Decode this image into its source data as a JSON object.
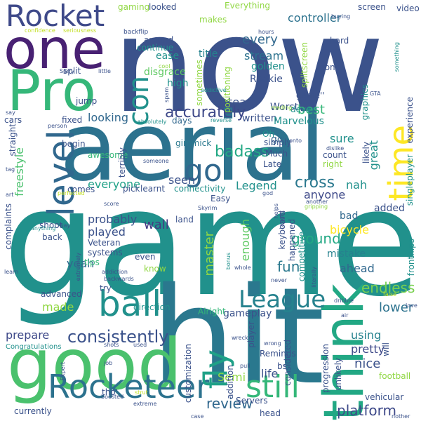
{
  "background": "#ffffff",
  "palette": {
    "dark_purple": "#440154",
    "indigo": "#3b528b",
    "blue": "#31688e",
    "teal": "#21918c",
    "green": "#35b779",
    "lime": "#90d743",
    "yellow": "#fde725"
  },
  "words": [
    {
      "text": "game",
      "color": "#21918c"
    },
    {
      "text": "hit",
      "color": "#2a788e"
    },
    {
      "text": "now",
      "color": "#3b528b"
    },
    {
      "text": "aerial",
      "color": "#2c728e"
    },
    {
      "text": "good",
      "color": "#4ac16d"
    },
    {
      "text": "one",
      "color": "#482173"
    },
    {
      "text": "Pro",
      "color": "#35b779"
    },
    {
      "text": "Rocket",
      "color": "#3e4989"
    },
    {
      "text": "think",
      "color": "#22a884"
    },
    {
      "text": "level",
      "color": "#31688e"
    },
    {
      "text": "time",
      "color": "#fde725"
    },
    {
      "text": "ball",
      "color": "#21918c"
    },
    {
      "text": "Rocketeer",
      "color": "#2c728e"
    },
    {
      "text": "go",
      "color": "#31688e"
    },
    {
      "text": "League",
      "color": "#26828e"
    },
    {
      "text": "fly",
      "color": "#1fa187"
    },
    {
      "text": "still",
      "color": "#35b779"
    },
    {
      "text": "con",
      "color": "#21918c"
    },
    {
      "text": "consistently",
      "color": "#3b528b"
    },
    {
      "text": "accurately",
      "color": "#3e4989"
    },
    {
      "text": "review",
      "color": "#31688e"
    },
    {
      "text": "platform",
      "color": "#3e4989"
    },
    {
      "text": "badass",
      "color": "#22a884"
    },
    {
      "text": "cross",
      "color": "#2a788e"
    },
    {
      "text": "master",
      "color": "#90d743"
    },
    {
      "text": "endless",
      "color": "#7ad151"
    },
    {
      "text": "lower",
      "color": "#2c728e"
    },
    {
      "text": "nice",
      "color": "#3b528b"
    },
    {
      "text": "Legend",
      "color": "#21918c"
    },
    {
      "text": "wall",
      "color": "#443983"
    },
    {
      "text": "played",
      "color": "#3b528b"
    },
    {
      "text": "anyone",
      "color": "#3e4989"
    },
    {
      "text": "fun",
      "color": "#2a788e"
    },
    {
      "text": "every",
      "color": "#31688e"
    },
    {
      "text": "stream",
      "color": "#2c728e"
    },
    {
      "text": "controller",
      "color": "#2c728e"
    },
    {
      "text": "title",
      "color": "#26828e"
    },
    {
      "text": "team",
      "color": "#3b528b"
    },
    {
      "text": "best",
      "color": "#35b779"
    },
    {
      "text": "everyone",
      "color": "#1fa187"
    },
    {
      "text": "ground",
      "color": "#22a884"
    },
    {
      "text": "probably",
      "color": "#3b528b"
    },
    {
      "text": "looking",
      "color": "#31688e"
    },
    {
      "text": "freestyle",
      "color": "#4ac16d"
    },
    {
      "text": "seen",
      "color": "#3b528b"
    },
    {
      "text": "go",
      "color": "#31688e"
    },
    {
      "text": "great",
      "color": "#21918c"
    },
    {
      "text": "sure",
      "color": "#21918c"
    },
    {
      "text": "nah",
      "color": "#21918c"
    },
    {
      "text": "yeah",
      "color": "#31688e"
    },
    {
      "text": "made",
      "color": "#90d743"
    },
    {
      "text": "prepare",
      "color": "#3e4989"
    },
    {
      "text": "gameplay",
      "color": "#3b528b"
    },
    {
      "text": "pretty",
      "color": "#3e4989"
    },
    {
      "text": "using",
      "color": "#26828e"
    },
    {
      "text": "life",
      "color": "#3b528b"
    },
    {
      "text": "Semi",
      "color": "#90d743"
    },
    {
      "text": "enough",
      "color": "#5ec962"
    },
    {
      "text": "ahead",
      "color": "#31688e"
    },
    {
      "text": "bad",
      "color": "#31688e"
    },
    {
      "text": "bicycle",
      "color": "#fde725"
    },
    {
      "text": "mistake",
      "color": "#26828e"
    },
    {
      "text": "added",
      "color": "#3b528b"
    },
    {
      "text": "Worst",
      "color": "#3b528b"
    },
    {
      "text": "written",
      "color": "#3b528b"
    },
    {
      "text": "Marvelous",
      "color": "#21918c"
    },
    {
      "text": "Rookie",
      "color": "#3b528b"
    },
    {
      "text": "golden",
      "color": "#21918c"
    },
    {
      "text": "disgrace",
      "color": "#5ec962"
    },
    {
      "text": "ease",
      "color": "#21918c"
    },
    {
      "text": "continue",
      "color": "#21918c"
    },
    {
      "text": "around",
      "color": "#3b528b"
    },
    {
      "text": "high",
      "color": "#21918c"
    },
    {
      "text": "split",
      "color": "#3b528b"
    },
    {
      "text": "jump",
      "color": "#3b528b"
    },
    {
      "text": "days",
      "color": "#31688e"
    },
    {
      "text": "fixed",
      "color": "#3b528b"
    },
    {
      "text": "begin",
      "color": "#3b528b"
    },
    {
      "text": "gimmick",
      "color": "#2a788e"
    },
    {
      "text": "simply",
      "color": "#3b528b"
    },
    {
      "text": "Much",
      "color": "#3b528b"
    },
    {
      "text": "Late",
      "color": "#3b528b"
    },
    {
      "text": "right",
      "color": "#90d743"
    },
    {
      "text": "count",
      "color": "#3b528b"
    },
    {
      "text": "awesome",
      "color": "#35b779"
    },
    {
      "text": "terribly",
      "color": "#3b528b"
    },
    {
      "text": "comes",
      "color": "#3b528b"
    },
    {
      "text": "pick",
      "color": "#3b528b"
    },
    {
      "text": "learnt",
      "color": "#3b528b"
    },
    {
      "text": "connectivity",
      "color": "#21918c"
    },
    {
      "text": "Easy",
      "color": "#3b528b"
    },
    {
      "text": "land",
      "color": "#3b528b"
    },
    {
      "text": "shoot",
      "color": "#3b528b"
    },
    {
      "text": "back",
      "color": "#3b528b"
    },
    {
      "text": "Veteran",
      "color": "#3b528b"
    },
    {
      "text": "tips",
      "color": "#35b779"
    },
    {
      "text": "systems",
      "color": "#3b528b"
    },
    {
      "text": "even",
      "color": "#3b528b"
    },
    {
      "text": "know",
      "color": "#90d743"
    },
    {
      "text": "try",
      "color": "#3b528b"
    },
    {
      "text": "advanced",
      "color": "#3b528b"
    },
    {
      "text": "direction",
      "color": "#21918c"
    },
    {
      "text": "Alright",
      "color": "#35b779"
    },
    {
      "text": "player",
      "color": "#3b528b"
    },
    {
      "text": "bs",
      "color": "#3b528b"
    },
    {
      "text": "Reminds",
      "color": "#3b528b"
    },
    {
      "text": "customization",
      "color": "#3b528b"
    },
    {
      "text": "Servers",
      "color": "#3b528b"
    },
    {
      "text": "tho'",
      "color": "#3b528b"
    },
    {
      "text": "currently",
      "color": "#3b528b"
    },
    {
      "text": "head",
      "color": "#3b528b"
    },
    {
      "text": "vehicular",
      "color": "#3b528b"
    },
    {
      "text": "football",
      "color": "#90d743"
    },
    {
      "text": "progression",
      "color": "#3b528b"
    },
    {
      "text": "unlikely",
      "color": "#3b528b"
    },
    {
      "text": "considered",
      "color": "#3b528b"
    },
    {
      "text": "addition",
      "color": "#3b528b"
    },
    {
      "text": "competitive",
      "color": "#21918c"
    },
    {
      "text": "keyboard",
      "color": "#3b528b"
    },
    {
      "text": "happened",
      "color": "#3b528b"
    },
    {
      "text": "frontflips",
      "color": "#21918c"
    },
    {
      "text": "singleplayer",
      "color": "#21918c"
    },
    {
      "text": "experience",
      "color": "#3b528b"
    },
    {
      "text": "graphics",
      "color": "#21918c"
    },
    {
      "text": "likely",
      "color": "#3b528b"
    },
    {
      "text": "will",
      "color": "#3b528b"
    },
    {
      "text": "screen",
      "color": "#3b528b"
    },
    {
      "text": "video",
      "color": "#3b528b"
    },
    {
      "text": "hard",
      "color": "#3b528b"
    },
    {
      "text": "tons",
      "color": "#3b528b"
    },
    {
      "text": "splitscreen",
      "color": "#90d743"
    },
    {
      "text": "game''",
      "color": "#3b528b"
    },
    {
      "text": "devs",
      "color": "#21918c"
    },
    {
      "text": "Oh",
      "color": "#21918c"
    },
    {
      "text": "positioning",
      "color": "#90d743"
    },
    {
      "text": "sometimes",
      "color": "#90d743"
    },
    {
      "text": "makes",
      "color": "#90d743"
    },
    {
      "text": "Everything",
      "color": "#90d743"
    },
    {
      "text": "gaming",
      "color": "#90d743"
    },
    {
      "text": "looked",
      "color": "#3b528b"
    },
    {
      "text": "complaints",
      "color": "#3b528b"
    },
    {
      "text": "straight",
      "color": "#3b528b"
    },
    {
      "text": "cars",
      "color": "#3b528b"
    },
    {
      "text": "Congratulations",
      "color": "#21918c"
    },
    {
      "text": "backflip",
      "color": "#3b528b"
    },
    {
      "text": "Sorry",
      "color": "#3b528b"
    },
    {
      "text": "confidence",
      "color": "#c2df23"
    },
    {
      "text": "seriousness",
      "color": "#c2df23"
    },
    {
      "text": "hours",
      "color": "#3b528b"
    },
    {
      "text": "buying",
      "color": "#3b528b"
    },
    {
      "text": "something",
      "color": "#21918c"
    },
    {
      "text": "GTA",
      "color": "#3b528b"
    },
    {
      "text": "Skyrim",
      "color": "#3b528b"
    },
    {
      "text": "addictive",
      "color": "#21918c"
    },
    {
      "text": "cool",
      "color": "#90d743"
    },
    {
      "text": "spam",
      "color": "#3b528b"
    },
    {
      "text": "absolutely",
      "color": "#21918c"
    },
    {
      "text": "reverse",
      "color": "#21918c"
    },
    {
      "text": "reading",
      "color": "#90d743"
    },
    {
      "text": "dislike",
      "color": "#3b528b"
    },
    {
      "text": "someone",
      "color": "#3b528b"
    },
    {
      "text": "onto",
      "color": "#3b528b"
    },
    {
      "text": "tag",
      "color": "#3b528b"
    },
    {
      "text": "art",
      "color": "#3b528b"
    },
    {
      "text": "perfected",
      "color": "#c2df23"
    },
    {
      "text": "score",
      "color": "#3b528b"
    },
    {
      "text": "god",
      "color": "#3b528b"
    },
    {
      "text": "gripping",
      "color": "#90d743"
    },
    {
      "text": "another",
      "color": "#3b528b"
    },
    {
      "text": "anything",
      "color": "#21918c"
    },
    {
      "text": "way",
      "color": "#3b528b"
    },
    {
      "text": "helps",
      "color": "#3b528b"
    },
    {
      "text": "taught",
      "color": "#3b528b"
    },
    {
      "text": "learn",
      "color": "#3b528b"
    },
    {
      "text": "extremely",
      "color": "#3b528b"
    },
    {
      "text": "bonus",
      "color": "#21918c"
    },
    {
      "text": "whole",
      "color": "#3b528b"
    },
    {
      "text": "never",
      "color": "#3b528b"
    },
    {
      "text": "literally",
      "color": "#3b528b"
    },
    {
      "text": "backwards",
      "color": "#3b528b"
    },
    {
      "text": "addiction",
      "color": "#3b528b"
    },
    {
      "text": "dribble",
      "color": "#3b528b"
    },
    {
      "text": "false",
      "color": "#c2df23"
    },
    {
      "text": "air",
      "color": "#3b528b"
    },
    {
      "text": "love",
      "color": "#3b528b"
    },
    {
      "text": "wreck",
      "color": "#3b528b"
    },
    {
      "text": "shots",
      "color": "#3b528b"
    },
    {
      "text": "used",
      "color": "#3b528b"
    },
    {
      "text": "wrong",
      "color": "#3b528b"
    },
    {
      "text": "pull",
      "color": "#3b528b"
    },
    {
      "text": "job",
      "color": "#3b528b"
    },
    {
      "text": "Expert",
      "color": "#3b528b"
    },
    {
      "text": "boosted",
      "color": "#3b528b"
    },
    {
      "text": "strut",
      "color": "#c2df23"
    },
    {
      "text": "extreme",
      "color": "#3b528b"
    },
    {
      "text": "case",
      "color": "#3b528b"
    },
    {
      "text": "person",
      "color": "#3b528b"
    },
    {
      "text": "say",
      "color": "#3b528b"
    },
    {
      "text": "nother",
      "color": "#3b528b"
    },
    {
      "text": "little",
      "color": "#3b528b"
    }
  ]
}
